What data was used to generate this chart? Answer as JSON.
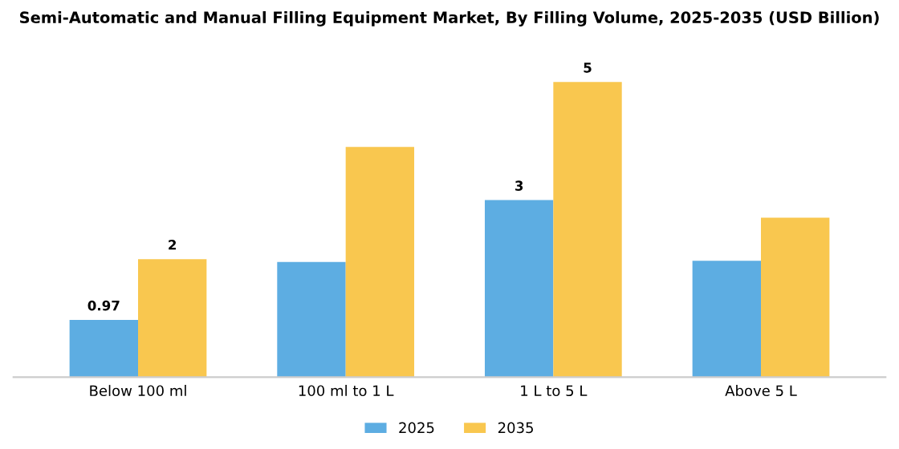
{
  "chart_data": {
    "type": "bar",
    "title": "Semi-Automatic and Manual Filling Equipment Market, By Filling Volume, 2025-2035 (USD Billion)",
    "categories": [
      "Below 100 ml",
      "100 ml to 1 L",
      "1 L to 5 L",
      "Above 5 L"
    ],
    "series": [
      {
        "name": "2025",
        "color": "#5dade2",
        "values": [
          0.97,
          1.95,
          3,
          1.97
        ],
        "value_labels": [
          "0.97",
          null,
          "3",
          null
        ]
      },
      {
        "name": "2035",
        "color": "#f9c74f",
        "values": [
          2,
          3.9,
          5,
          2.7
        ],
        "value_labels": [
          "2",
          null,
          "5",
          null
        ]
      }
    ],
    "legend": "bottom",
    "grid": false
  }
}
